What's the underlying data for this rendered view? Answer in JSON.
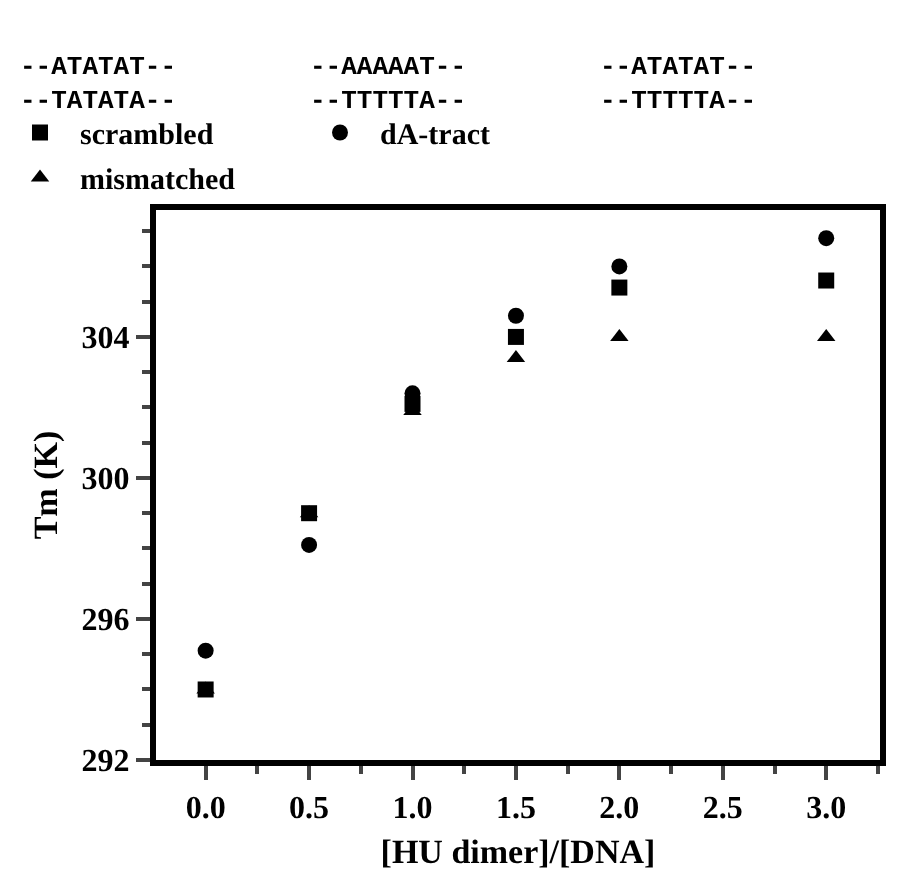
{
  "chart_data": {
    "type": "scatter",
    "xlabel": "[HU dimer]/[DNA]",
    "ylabel": "Tm (K)",
    "x": [
      0,
      0.5,
      1,
      1.5,
      2,
      3
    ],
    "xlim": [
      -0.24,
      3.26
    ],
    "xticks": [
      {
        "value": 0,
        "label": "0.0"
      },
      {
        "value": 0.5,
        "label": "0.5"
      },
      {
        "value": 1,
        "label": "1.0"
      },
      {
        "value": 1.5,
        "label": "1.5"
      },
      {
        "value": 2,
        "label": "2.0"
      },
      {
        "value": 2.5,
        "label": "2.5"
      },
      {
        "value": 3,
        "label": "3.0"
      }
    ],
    "ylim": [
      292,
      307.6
    ],
    "yticks": [
      292,
      296,
      300,
      304
    ],
    "grid": false,
    "legend": "top",
    "annotations": [
      "--ATATAT--\n--TATATA--",
      "--AAAAAT--\n--TTTTTA--",
      "--ATATAT--\n--TTTTTA--"
    ],
    "series": [
      {
        "name": "scrambled",
        "color": "#000000",
        "marker": "square",
        "values": [
          294,
          299,
          302.1,
          304,
          305.4,
          305.6
        ]
      },
      {
        "name": "dA-tract",
        "color": "#000000",
        "marker": "circle",
        "values": [
          295.1,
          298.1,
          302.4,
          304.6,
          306,
          306.8
        ]
      },
      {
        "name": "mismatched",
        "color": "#000000",
        "marker": "triangle",
        "values": [
          294,
          299,
          301.9,
          303.4,
          304,
          304
        ]
      }
    ]
  }
}
